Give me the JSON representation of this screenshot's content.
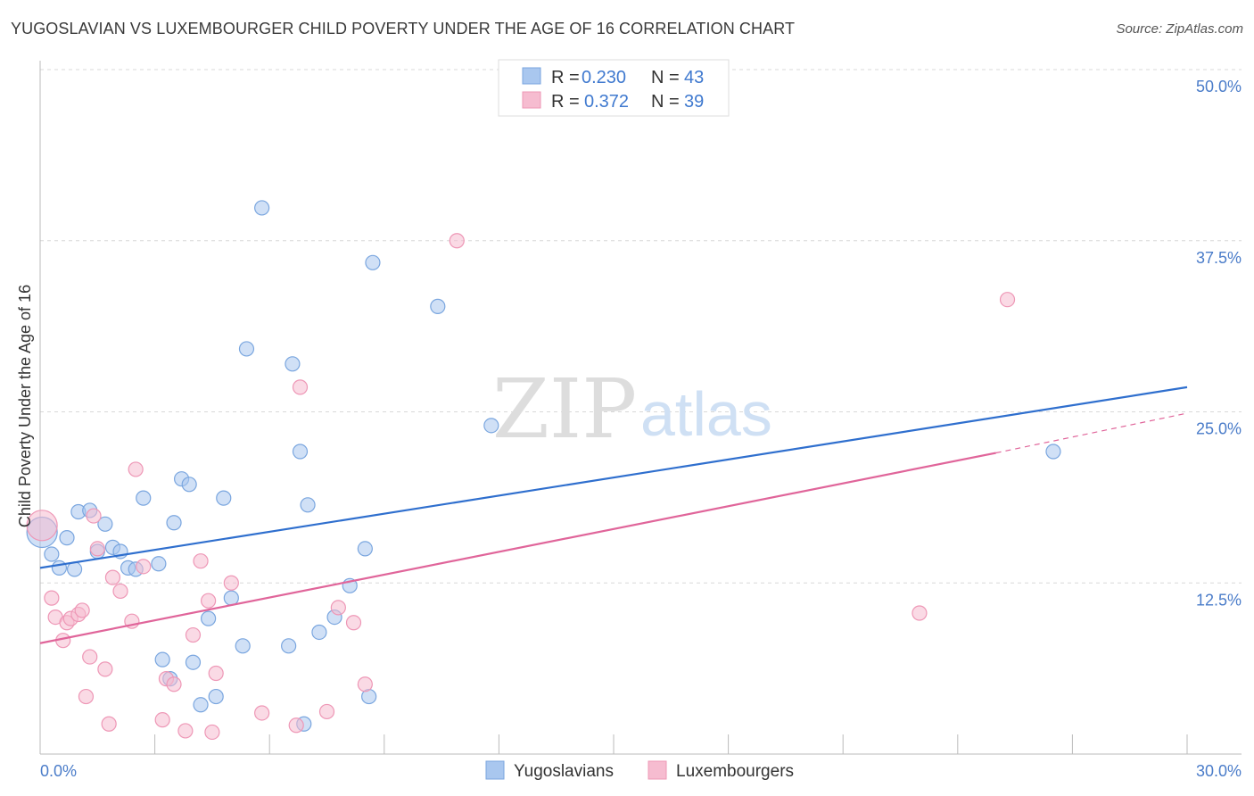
{
  "title": "YUGOSLAVIAN VS LUXEMBOURGER CHILD POVERTY UNDER THE AGE OF 16 CORRELATION CHART",
  "source": "Source: ZipAtlas.com",
  "watermark": {
    "zip": "ZIP",
    "atlas": "atlas"
  },
  "colors": {
    "blue_fill": "#a9c7ef",
    "blue_stroke": "#7aa6df",
    "blue_line": "#2f6fce",
    "pink_fill": "#f6bcd0",
    "pink_stroke": "#ee97b6",
    "pink_line": "#e0659a",
    "tick_text": "#4a7cc9"
  },
  "legend": {
    "r_label": "R =",
    "n_label": "N =",
    "rows": [
      {
        "r": "0.230",
        "n": "43"
      },
      {
        "r": "0.372",
        "n": "39"
      }
    ]
  },
  "chart_data": {
    "type": "scatter",
    "title": "YUGOSLAVIAN VS LUXEMBOURGER CHILD POVERTY UNDER THE AGE OF 16 CORRELATION CHART",
    "xlabel": "",
    "ylabel": "Child Poverty Under the Age of 16",
    "xlim": [
      0,
      30
    ],
    "ylim": [
      0,
      50
    ],
    "x_tick_labels": [
      "0.0%",
      "30.0%"
    ],
    "y_ticks": [
      12.5,
      25.0,
      37.5,
      50.0
    ],
    "y_tick_labels": [
      "12.5%",
      "25.0%",
      "37.5%",
      "50.0%"
    ],
    "grid": true,
    "series": [
      {
        "name": "Yugoslavians",
        "points": [
          [
            0.05,
            16.2
          ],
          [
            0.3,
            14.6
          ],
          [
            0.5,
            13.6
          ],
          [
            0.7,
            15.8
          ],
          [
            0.9,
            13.5
          ],
          [
            1.0,
            17.7
          ],
          [
            1.3,
            17.8
          ],
          [
            1.5,
            14.8
          ],
          [
            1.7,
            16.8
          ],
          [
            1.9,
            15.1
          ],
          [
            2.1,
            14.8
          ],
          [
            2.3,
            13.6
          ],
          [
            2.5,
            13.5
          ],
          [
            2.7,
            18.7
          ],
          [
            3.1,
            13.9
          ],
          [
            3.2,
            6.9
          ],
          [
            3.4,
            5.5
          ],
          [
            3.5,
            16.9
          ],
          [
            3.7,
            20.1
          ],
          [
            3.9,
            19.7
          ],
          [
            4.0,
            6.7
          ],
          [
            4.2,
            3.6
          ],
          [
            4.4,
            9.9
          ],
          [
            4.6,
            4.2
          ],
          [
            4.8,
            18.7
          ],
          [
            5.0,
            11.4
          ],
          [
            5.3,
            7.9
          ],
          [
            5.4,
            29.6
          ],
          [
            5.8,
            39.9
          ],
          [
            6.5,
            7.9
          ],
          [
            6.6,
            28.5
          ],
          [
            6.8,
            22.1
          ],
          [
            6.9,
            2.2
          ],
          [
            7.0,
            18.2
          ],
          [
            7.3,
            8.9
          ],
          [
            7.7,
            10.0
          ],
          [
            8.1,
            12.3
          ],
          [
            8.5,
            15.0
          ],
          [
            8.6,
            4.2
          ],
          [
            8.7,
            35.9
          ],
          [
            10.4,
            32.7
          ],
          [
            11.8,
            24.0
          ],
          [
            26.5,
            22.1
          ]
        ]
      },
      {
        "name": "Luxembourgers",
        "points": [
          [
            0.05,
            16.7
          ],
          [
            0.3,
            11.4
          ],
          [
            0.4,
            10.0
          ],
          [
            0.6,
            8.3
          ],
          [
            0.7,
            9.6
          ],
          [
            0.8,
            9.9
          ],
          [
            1.0,
            10.2
          ],
          [
            1.1,
            10.5
          ],
          [
            1.2,
            4.2
          ],
          [
            1.3,
            7.1
          ],
          [
            1.4,
            17.4
          ],
          [
            1.5,
            15.0
          ],
          [
            1.7,
            6.2
          ],
          [
            1.8,
            2.2
          ],
          [
            1.9,
            12.9
          ],
          [
            2.1,
            11.9
          ],
          [
            2.4,
            9.7
          ],
          [
            2.5,
            20.8
          ],
          [
            2.7,
            13.7
          ],
          [
            3.2,
            2.5
          ],
          [
            3.3,
            5.5
          ],
          [
            3.5,
            5.1
          ],
          [
            3.8,
            1.7
          ],
          [
            4.0,
            8.7
          ],
          [
            4.2,
            14.1
          ],
          [
            4.4,
            11.2
          ],
          [
            4.5,
            1.6
          ],
          [
            4.6,
            5.9
          ],
          [
            5.0,
            12.5
          ],
          [
            5.8,
            3.0
          ],
          [
            6.7,
            2.1
          ],
          [
            6.8,
            26.8
          ],
          [
            7.5,
            3.1
          ],
          [
            7.8,
            10.7
          ],
          [
            8.2,
            9.6
          ],
          [
            8.5,
            5.1
          ],
          [
            10.9,
            37.5
          ],
          [
            23.0,
            10.3
          ],
          [
            25.3,
            33.2
          ]
        ]
      }
    ],
    "trendlines": [
      {
        "name": "Yugoslavians",
        "x": [
          0,
          30
        ],
        "y": [
          13.6,
          26.8
        ]
      },
      {
        "name": "Luxembourgers",
        "x": [
          0,
          25
        ],
        "y": [
          8.1,
          22.0
        ],
        "dashed_to": [
          30,
          24.9
        ]
      }
    ]
  },
  "bottom_legend": [
    "Yugoslavians",
    "Luxembourgers"
  ]
}
